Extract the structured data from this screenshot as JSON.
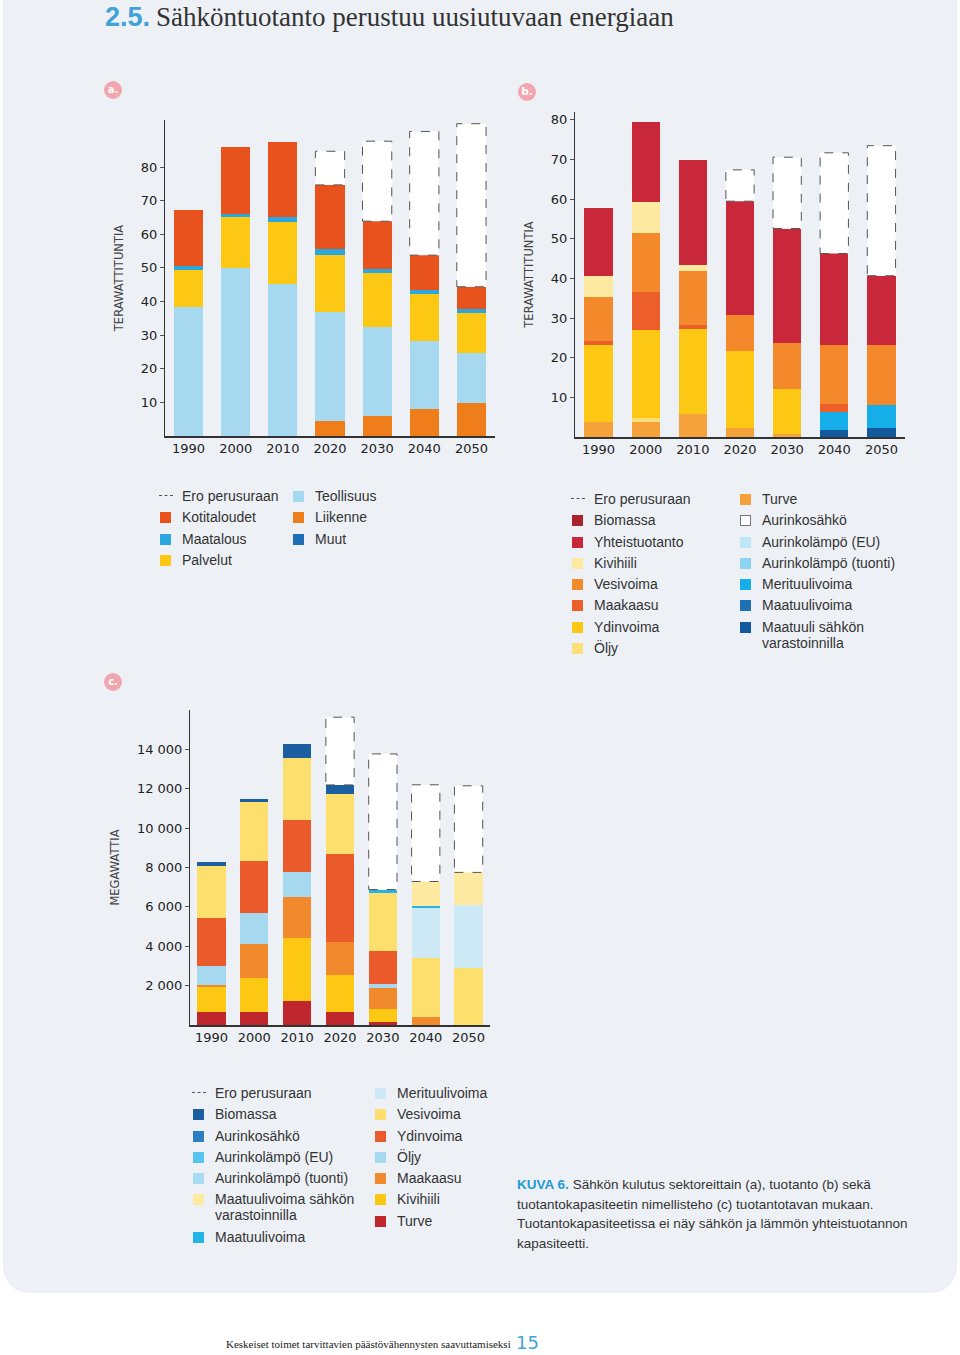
{
  "page": {
    "heading_number": "2.5.",
    "heading": "Sähköntuotanto perustuu uusiutuvaan energiaan",
    "caption_label": "KUVA 6.",
    "caption": "Sähkön kulutus sektoreittain (a), tuotanto (b) sekä tuotantokapasiteetin nimellisteho (c) tuotantotavan mukaan. Tuotantokapasiteetissa ei näy sähkön ja lämmön yhteistuotannon kapasiteetti.",
    "footer": "Keskeiset toimet tarvittavien päästövähennysten saavuttamiseksi",
    "page_number": "15"
  },
  "chart_data": [
    {
      "panel_label": "a.",
      "type": "bar",
      "stacked": true,
      "grid": false,
      "ylabel": "TERAWATTITUNTIA",
      "categories": [
        "1990",
        "2000",
        "2010",
        "2020",
        "2030",
        "2040",
        "2050"
      ],
      "ylim": [
        0,
        94
      ],
      "yticks": [
        10,
        20,
        30,
        40,
        50,
        60,
        70,
        80
      ],
      "series": [
        {
          "name": "Ero perusuraan",
          "color": "#ffffff",
          "line_style": "dashed",
          "values": [
            0,
            0,
            0,
            10,
            23.8,
            36.8,
            48.5
          ]
        },
        {
          "name": "Kotitaloudet",
          "color": "#e8521c",
          "values": [
            16.5,
            20,
            22.4,
            19.1,
            14.1,
            10.3,
            6.5
          ]
        },
        {
          "name": "Maatalous",
          "color": "#2aa7dc",
          "values": [
            1.2,
            1,
            1.2,
            1.8,
            1.2,
            1.2,
            1.2
          ]
        },
        {
          "name": "Palvelut",
          "color": "#fcc814",
          "values": [
            11,
            15,
            18.5,
            16.8,
            16.2,
            14.1,
            12
          ]
        },
        {
          "name": "Teollisuus",
          "color": "#a6d8f0",
          "values": [
            38.5,
            50,
            45.3,
            32.6,
            26.5,
            20.3,
            15
          ]
        },
        {
          "name": "Liikenne",
          "color": "#ef7d1a",
          "values": [
            0,
            0,
            0,
            4.4,
            5.9,
            7.9,
            9.7
          ]
        },
        {
          "name": "Muut",
          "color": "#1f6fb5",
          "values": [
            0,
            0,
            0,
            0,
            0,
            0,
            0
          ]
        }
      ]
    },
    {
      "panel_label": "b.",
      "type": "bar",
      "stacked": true,
      "grid": false,
      "ylabel": "TERAWATTITUNTIA",
      "categories": [
        "1990",
        "2000",
        "2010",
        "2020",
        "2030",
        "2040",
        "2050"
      ],
      "ylim": [
        0,
        82
      ],
      "yticks": [
        10,
        20,
        30,
        40,
        50,
        60,
        70,
        80
      ],
      "series": [
        {
          "name": "Ero perusuraan",
          "color": "#ffffff",
          "line_style": "dashed",
          "values": [
            0,
            0,
            0,
            7.9,
            18,
            25.4,
            32.8
          ]
        },
        {
          "name": "Biomassa",
          "color": "#a8232c",
          "values": [
            0,
            0,
            0,
            0,
            0,
            0,
            0
          ]
        },
        {
          "name": "Yhteistuotanto",
          "color": "#c8283a",
          "values": [
            17,
            20,
            26.4,
            28.7,
            29,
            23,
            17.4
          ]
        },
        {
          "name": "Kivihiili",
          "color": "#fde9a0",
          "values": [
            5.4,
            7.9,
            1.5,
            0,
            0,
            0,
            0
          ]
        },
        {
          "name": "Vesivoima",
          "color": "#f3892b",
          "values": [
            11,
            14.9,
            13.8,
            9,
            11.5,
            14.9,
            15.1
          ]
        },
        {
          "name": "Maakaasu",
          "color": "#ec5f2a",
          "values": [
            1,
            9.5,
            1,
            0,
            0,
            2,
            0
          ]
        },
        {
          "name": "Ydinvoima",
          "color": "#fcc814",
          "values": [
            19.5,
            22.3,
            21.3,
            19.5,
            11.3,
            0,
            0
          ]
        },
        {
          "name": "Öljy",
          "color": "#fbe07a",
          "values": [
            0,
            1,
            0,
            0,
            0,
            0,
            0
          ]
        },
        {
          "name": "Turve",
          "color": "#f5a23a",
          "values": [
            3.8,
            3.8,
            5.9,
            2.3,
            0.8,
            0,
            0
          ]
        },
        {
          "name": "Aurinkosähkö",
          "color": "#ffffff",
          "values": [
            0,
            0,
            0,
            0,
            0,
            0,
            0
          ]
        },
        {
          "name": "Aurinkolämpö (EU)",
          "color": "#bfe6f6",
          "values": [
            0,
            0,
            0,
            0,
            0,
            0,
            0
          ]
        },
        {
          "name": "Aurinkolämpö (tuonti)",
          "color": "#8dd3f2",
          "values": [
            0,
            0,
            0,
            0,
            0,
            0,
            0
          ]
        },
        {
          "name": "Merituulivoima",
          "color": "#16aee8",
          "values": [
            0,
            0,
            0,
            0,
            0,
            4.6,
            5.9
          ]
        },
        {
          "name": "Maatuulivoima",
          "color": "#1f6fb5",
          "values": [
            0,
            0,
            0,
            0,
            0,
            0,
            0
          ]
        },
        {
          "name": "Maatuuli sähkön varastoinnilla",
          "color": "#125a9c",
          "values": [
            0,
            0,
            0,
            0,
            0,
            1.8,
            2.3
          ]
        }
      ]
    },
    {
      "panel_label": "c.",
      "type": "bar",
      "stacked": true,
      "grid": false,
      "ylabel": "MEGAWATTIA",
      "categories": [
        "1990",
        "2000",
        "2010",
        "2020",
        "2030",
        "2040",
        "2050"
      ],
      "ylim": [
        0,
        16000
      ],
      "yticks": [
        {
          "value": 2000,
          "label": "2 000"
        },
        {
          "value": 4000,
          "label": "4 000"
        },
        {
          "value": 6000,
          "label": "6 000"
        },
        {
          "value": 8000,
          "label": "8 000"
        },
        {
          "value": 10000,
          "label": "10 000"
        },
        {
          "value": 12000,
          "label": "12 000"
        },
        {
          "value": 14000,
          "label": "14 000"
        }
      ],
      "series": [
        {
          "name": "Ero perusuraan",
          "color": "#ffffff",
          "line_style": "dashed",
          "values": [
            0,
            0,
            0,
            3440,
            6890,
            4910,
            4400
          ]
        },
        {
          "name": "Biomassa",
          "color": "#1c5fa0",
          "values": [
            200,
            150,
            710,
            455,
            0,
            0,
            0
          ]
        },
        {
          "name": "Aurinkosähkö",
          "color": "#2b7fc1",
          "values": [
            0,
            0,
            0,
            0,
            0,
            0,
            0
          ]
        },
        {
          "name": "Aurinkolämpö (EU)",
          "color": "#56c4ee",
          "values": [
            0,
            0,
            0,
            0,
            0,
            0,
            0
          ]
        },
        {
          "name": "Aurinkolämpö (tuonti)",
          "color": "#a8dcf3",
          "values": [
            0,
            0,
            0,
            0,
            0,
            0,
            0
          ]
        },
        {
          "name": "Maatuulivoima sähkön varastoinnilla",
          "color": "#fde9a0",
          "values": [
            0,
            0,
            0,
            0,
            0,
            1270,
            1670
          ]
        },
        {
          "name": "Maatuulivoima",
          "color": "#22b5e6",
          "values": [
            0,
            0,
            0,
            0,
            150,
            100,
            0
          ]
        },
        {
          "name": "Merituulivoima",
          "color": "#cde9f6",
          "values": [
            0,
            0,
            0,
            0,
            0,
            2530,
            3190
          ]
        },
        {
          "name": "Vesivoima",
          "color": "#fddf6e",
          "values": [
            2680,
            2990,
            3140,
            3040,
            2990,
            2990,
            2890
          ]
        },
        {
          "name": "Ydinvoima",
          "color": "#ea5a2a",
          "values": [
            2430,
            2680,
            2630,
            4500,
            1670,
            0,
            0
          ]
        },
        {
          "name": "Öljy",
          "color": "#a6d8f0",
          "values": [
            960,
            1570,
            1316,
            0,
            200,
            0,
            0
          ]
        },
        {
          "name": "Maakaasu",
          "color": "#f08a2c",
          "values": [
            100,
            1720,
            2075,
            1670,
            1060,
            400,
            0
          ]
        },
        {
          "name": "Kivihiili",
          "color": "#fcc814",
          "values": [
            1270,
            1720,
            3190,
            1870,
            660,
            0,
            0
          ]
        },
        {
          "name": "Turve",
          "color": "#c0272d",
          "values": [
            660,
            660,
            1215,
            660,
            150,
            0,
            0
          ]
        }
      ]
    }
  ]
}
